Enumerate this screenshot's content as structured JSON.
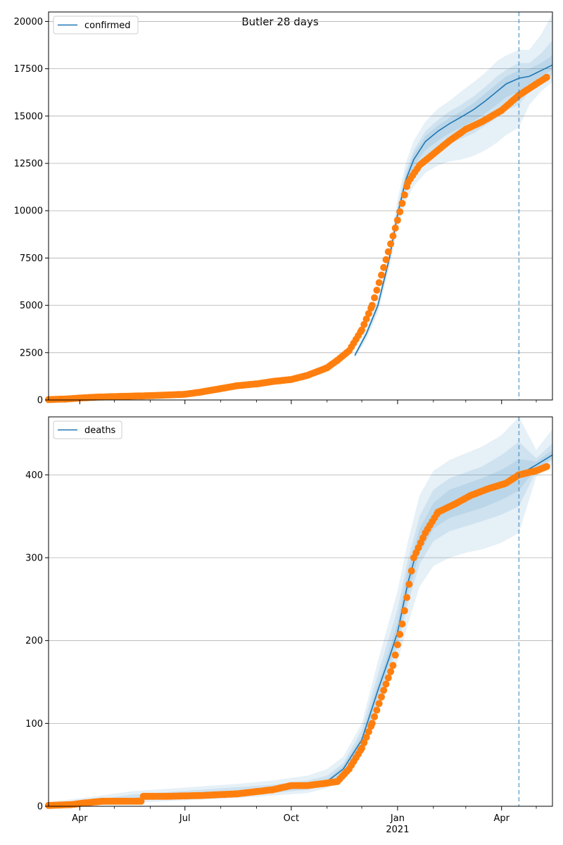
{
  "title": "Butler 28 days",
  "colors": {
    "model": "#1f77b4",
    "observed": "#ff7f0e",
    "band": "#1f77b4",
    "grid": "#b0b0b0",
    "forecast_line": "#1f77b4"
  },
  "chart_data": [
    {
      "type": "line",
      "legend": "confirmed",
      "legend_position": "top-left",
      "grid": "y",
      "xlim": [
        "2020-03-05",
        "2021-05-15"
      ],
      "ylim": [
        0,
        20500
      ],
      "yticks": [
        0,
        2500,
        5000,
        7500,
        10000,
        12500,
        15000,
        17500,
        20000
      ],
      "ytick_labels": [
        "0",
        "2500",
        "5000",
        "7500",
        "10000",
        "12500",
        "15000",
        "17500",
        "20000"
      ],
      "forecast_start": "2021-04-16",
      "model": {
        "x": [
          "2020-11-25",
          "2020-12-05",
          "2020-12-15",
          "2020-12-25",
          "2021-01-01",
          "2021-01-08",
          "2021-01-15",
          "2021-01-25",
          "2021-02-05",
          "2021-02-15",
          "2021-02-25",
          "2021-03-08",
          "2021-03-18",
          "2021-03-28",
          "2021-04-05",
          "2021-04-16",
          "2021-04-25",
          "2021-05-05",
          "2021-05-15"
        ],
        "y": [
          2350,
          3500,
          5000,
          7500,
          9800,
          11600,
          12700,
          13650,
          14200,
          14600,
          14950,
          15350,
          15800,
          16300,
          16700,
          17000,
          17100,
          17400,
          17700
        ],
        "bands": [
          {
            "lower": [
              2200,
              3200,
              4600,
              7000,
              9000,
              10500,
              11300,
              12000,
              12400,
              12600,
              12700,
              12900,
              13200,
              13600,
              14000,
              14400,
              15600,
              16300,
              16800
            ],
            "upper": [
              2500,
              3800,
              5400,
              8000,
              10600,
              12500,
              13700,
              14700,
              15400,
              15800,
              16300,
              16800,
              17300,
              17900,
              18200,
              18500,
              18500,
              19300,
              20400
            ]
          },
          {
            "lower": [
              2270,
              3350,
              4800,
              7250,
              9400,
              11050,
              12000,
              12800,
              13250,
              13600,
              13800,
              14100,
              14500,
              14900,
              15300,
              15600,
              16300,
              16800,
              17200
            ],
            "upper": [
              2430,
              3650,
              5200,
              7750,
              10200,
              12050,
              13200,
              14200,
              14800,
              15250,
              15600,
              16050,
              16550,
              17100,
              17450,
              17800,
              17800,
              18300,
              19000
            ]
          },
          {
            "lower": [
              2310,
              3420,
              4900,
              7380,
              9600,
              11350,
              12350,
              13200,
              13700,
              14100,
              14400,
              14750,
              15150,
              15600,
              16000,
              16300,
              16700,
              17100,
              17450
            ],
            "upper": [
              2390,
              3580,
              5100,
              7620,
              10000,
              11850,
              13000,
              13950,
              14500,
              14900,
              15250,
              15700,
              16200,
              16700,
              17100,
              17400,
              17500,
              17800,
              18200
            ]
          }
        ]
      },
      "observed": {
        "x": [
          "2020-03-05",
          "2020-03-20",
          "2020-04-01",
          "2020-04-15",
          "2020-05-01",
          "2020-05-15",
          "2020-06-01",
          "2020-06-15",
          "2020-07-01",
          "2020-07-15",
          "2020-08-01",
          "2020-08-15",
          "2020-09-01",
          "2020-09-15",
          "2020-10-01",
          "2020-10-15",
          "2020-11-01",
          "2020-11-10",
          "2020-11-20",
          "2020-12-01",
          "2020-12-10",
          "2020-12-20",
          "2021-01-01",
          "2021-01-10",
          "2021-01-20",
          "2021-02-01",
          "2021-02-15",
          "2021-03-01",
          "2021-03-15",
          "2021-04-01",
          "2021-04-16",
          "2021-05-01",
          "2021-05-10"
        ],
        "y": [
          20,
          50,
          100,
          150,
          180,
          200,
          230,
          260,
          300,
          420,
          600,
          750,
          850,
          980,
          1080,
          1300,
          1700,
          2100,
          2600,
          3700,
          5000,
          7000,
          9500,
          11500,
          12400,
          13000,
          13700,
          14300,
          14700,
          15300,
          16100,
          16700,
          17050
        ]
      }
    },
    {
      "type": "line",
      "legend": "deaths",
      "legend_position": "top-left",
      "grid": "y",
      "xlim": [
        "2020-03-05",
        "2021-05-15"
      ],
      "ylim": [
        0,
        470
      ],
      "yticks": [
        0,
        100,
        200,
        300,
        400
      ],
      "ytick_labels": [
        "0",
        "100",
        "200",
        "300",
        "400"
      ],
      "xticks": [
        "2020-04-01",
        "2020-07-01",
        "2020-10-01",
        "2021-01-01",
        "2021-04-01"
      ],
      "xtick_labels": [
        "Apr",
        "Jul",
        "Oct",
        "Jan",
        "Apr"
      ],
      "xtick_year": "2021",
      "forecast_start": "2021-04-16",
      "model": {
        "x": [
          "2020-03-05",
          "2020-04-15",
          "2020-05-15",
          "2020-06-15",
          "2020-07-15",
          "2020-08-15",
          "2020-09-15",
          "2020-10-15",
          "2020-11-01",
          "2020-11-15",
          "2020-12-01",
          "2020-12-15",
          "2020-12-25",
          "2021-01-01",
          "2021-01-10",
          "2021-01-20",
          "2021-02-01",
          "2021-02-15",
          "2021-03-01",
          "2021-03-15",
          "2021-04-01",
          "2021-04-16",
          "2021-05-01",
          "2021-05-15"
        ],
        "y": [
          0,
          4,
          8,
          12,
          14,
          17,
          20,
          24,
          30,
          45,
          80,
          140,
          180,
          210,
          270,
          320,
          350,
          365,
          372,
          378,
          388,
          400,
          412,
          424
        ],
        "bands": [
          {
            "lower": [
              0,
              1,
              4,
              6,
              8,
              10,
              13,
              16,
              22,
              32,
              60,
              110,
              150,
              175,
              220,
              265,
              290,
              300,
              306,
              310,
              318,
              330,
              398,
              412
            ],
            "upper": [
              5,
              12,
              18,
              21,
              24,
              27,
              31,
              37,
              45,
              60,
              100,
              175,
              225,
              260,
              320,
              375,
              405,
              418,
              426,
              434,
              448,
              470,
              430,
              455
            ]
          },
          {
            "lower": [
              0,
              2,
              6,
              9,
              11,
              13,
              16,
              20,
              26,
              38,
              70,
              125,
              165,
              192,
              245,
              292,
              320,
              332,
              338,
              344,
              352,
              362,
              405,
              418
            ],
            "upper": [
              3,
              8,
              14,
              17,
              20,
              23,
              26,
              31,
              37,
              52,
              92,
              160,
              205,
              238,
              298,
              350,
              382,
              396,
              403,
              410,
              424,
              440,
              420,
              438
            ]
          },
          {
            "lower": [
              0,
              3,
              7,
              10,
              12,
              15,
              18,
              22,
              28,
              41,
              75,
              132,
              172,
              200,
              257,
              305,
              335,
              348,
              354,
              360,
              370,
              381,
              408,
              420
            ],
            "upper": [
              1,
              5,
              10,
              14,
              16,
              19,
              22,
              26,
              32,
              49,
              85,
              148,
              190,
              222,
              285,
              335,
              366,
              382,
              389,
              396,
              406,
              419,
              416,
              430
            ]
          }
        ]
      },
      "observed": {
        "x": [
          "2020-03-05",
          "2020-03-25",
          "2020-04-05",
          "2020-04-20",
          "2020-05-10",
          "2020-05-24",
          "2020-05-26",
          "2020-06-15",
          "2020-07-15",
          "2020-08-15",
          "2020-09-15",
          "2020-10-01",
          "2020-10-15",
          "2020-11-01",
          "2020-11-10",
          "2020-11-20",
          "2020-12-01",
          "2020-12-10",
          "2020-12-20",
          "2020-12-28",
          "2021-01-05",
          "2021-01-15",
          "2021-01-25",
          "2021-02-05",
          "2021-02-20",
          "2021-03-05",
          "2021-03-20",
          "2021-04-05",
          "2021-04-16",
          "2021-05-01",
          "2021-05-10"
        ],
        "y": [
          1,
          2,
          4,
          6,
          6,
          6,
          12,
          12,
          13,
          15,
          20,
          25,
          25,
          28,
          30,
          45,
          70,
          100,
          140,
          170,
          220,
          300,
          330,
          355,
          365,
          375,
          383,
          390,
          400,
          405,
          410
        ]
      }
    }
  ]
}
